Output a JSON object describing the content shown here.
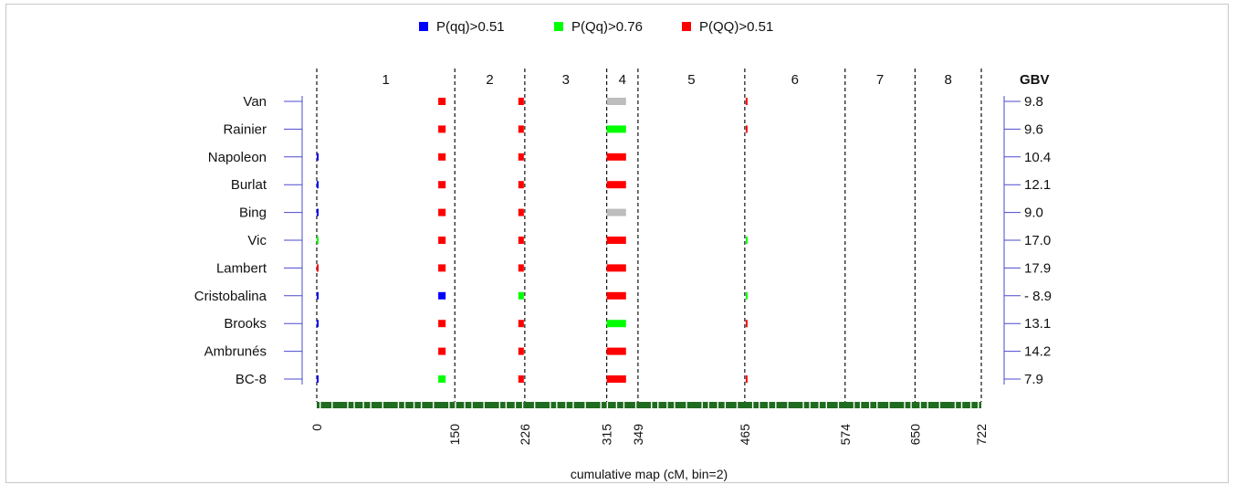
{
  "chart_data": {
    "type": "scatter",
    "legend": {
      "placement": "top-center",
      "entries": [
        {
          "label": "P(qq)>0.51",
          "color": "#0000ff"
        },
        {
          "label": "P(Qq)>0.76",
          "color": "#00ff00"
        },
        {
          "label": "P(QQ)>0.51",
          "color": "#ff0000"
        }
      ]
    },
    "other_color": "#bdbdbd",
    "axis_color": "#4a4acf",
    "marker_color": "#1f6b1f",
    "xlabel": "cumulative map (cM, bin=2)",
    "xlim": [
      0,
      722
    ],
    "boundaries": [
      0,
      150,
      226,
      315,
      349,
      465,
      574,
      650,
      722
    ],
    "boundary_labels": [
      "0",
      "150",
      "226",
      "315",
      "349",
      "465",
      "574",
      "650",
      "722"
    ],
    "chromosomes": [
      "1",
      "2",
      "3",
      "4",
      "5",
      "6",
      "7",
      "8"
    ],
    "gbv_title": "GBV",
    "cultivars": [
      "Van",
      "Rainier",
      "Napoleon",
      "Burlat",
      "Bing",
      "Vic",
      "Lambert",
      "Cristobalina",
      "Brooks",
      "Ambrunés",
      "BC-8"
    ],
    "gbv": [
      "9.8",
      "9.6",
      "10.4",
      "12.1",
      "9.0",
      "17.0",
      "17.9",
      "- 8.9",
      "13.1",
      "14.2",
      "7.9"
    ],
    "segments": [
      {
        "row": 0,
        "start": 132,
        "end": 140,
        "class": "QQ"
      },
      {
        "row": 0,
        "start": 219,
        "end": 225,
        "class": "QQ"
      },
      {
        "row": 0,
        "start": 315,
        "end": 336,
        "class": "other"
      },
      {
        "row": 0,
        "start": 466,
        "end": 468,
        "class": "QQ"
      },
      {
        "row": 1,
        "start": 132,
        "end": 140,
        "class": "QQ"
      },
      {
        "row": 1,
        "start": 219,
        "end": 225,
        "class": "QQ"
      },
      {
        "row": 1,
        "start": 315,
        "end": 336,
        "class": "Qq"
      },
      {
        "row": 1,
        "start": 466,
        "end": 468,
        "class": "QQ"
      },
      {
        "row": 2,
        "start": 0,
        "end": 2,
        "class": "qq"
      },
      {
        "row": 2,
        "start": 132,
        "end": 140,
        "class": "QQ"
      },
      {
        "row": 2,
        "start": 219,
        "end": 225,
        "class": "QQ"
      },
      {
        "row": 2,
        "start": 315,
        "end": 336,
        "class": "QQ"
      },
      {
        "row": 3,
        "start": 0,
        "end": 2,
        "class": "qq"
      },
      {
        "row": 3,
        "start": 132,
        "end": 140,
        "class": "QQ"
      },
      {
        "row": 3,
        "start": 219,
        "end": 225,
        "class": "QQ"
      },
      {
        "row": 3,
        "start": 315,
        "end": 336,
        "class": "QQ"
      },
      {
        "row": 4,
        "start": 0,
        "end": 2,
        "class": "qq"
      },
      {
        "row": 4,
        "start": 132,
        "end": 140,
        "class": "QQ"
      },
      {
        "row": 4,
        "start": 219,
        "end": 225,
        "class": "QQ"
      },
      {
        "row": 4,
        "start": 315,
        "end": 336,
        "class": "other"
      },
      {
        "row": 5,
        "start": 0,
        "end": 2,
        "class": "Qq"
      },
      {
        "row": 5,
        "start": 132,
        "end": 140,
        "class": "QQ"
      },
      {
        "row": 5,
        "start": 219,
        "end": 225,
        "class": "QQ"
      },
      {
        "row": 5,
        "start": 315,
        "end": 336,
        "class": "QQ"
      },
      {
        "row": 5,
        "start": 466,
        "end": 468,
        "class": "Qq"
      },
      {
        "row": 6,
        "start": 0,
        "end": 2,
        "class": "QQ"
      },
      {
        "row": 6,
        "start": 132,
        "end": 140,
        "class": "QQ"
      },
      {
        "row": 6,
        "start": 219,
        "end": 225,
        "class": "QQ"
      },
      {
        "row": 6,
        "start": 315,
        "end": 336,
        "class": "QQ"
      },
      {
        "row": 7,
        "start": 0,
        "end": 2,
        "class": "qq"
      },
      {
        "row": 7,
        "start": 132,
        "end": 140,
        "class": "qq"
      },
      {
        "row": 7,
        "start": 219,
        "end": 225,
        "class": "Qq"
      },
      {
        "row": 7,
        "start": 315,
        "end": 336,
        "class": "QQ"
      },
      {
        "row": 7,
        "start": 466,
        "end": 468,
        "class": "Qq"
      },
      {
        "row": 8,
        "start": 0,
        "end": 2,
        "class": "qq"
      },
      {
        "row": 8,
        "start": 132,
        "end": 140,
        "class": "QQ"
      },
      {
        "row": 8,
        "start": 219,
        "end": 225,
        "class": "QQ"
      },
      {
        "row": 8,
        "start": 315,
        "end": 336,
        "class": "Qq"
      },
      {
        "row": 8,
        "start": 466,
        "end": 468,
        "class": "QQ"
      },
      {
        "row": 9,
        "start": 132,
        "end": 140,
        "class": "QQ"
      },
      {
        "row": 9,
        "start": 219,
        "end": 225,
        "class": "QQ"
      },
      {
        "row": 9,
        "start": 315,
        "end": 336,
        "class": "QQ"
      },
      {
        "row": 10,
        "start": 0,
        "end": 2,
        "class": "qq"
      },
      {
        "row": 10,
        "start": 132,
        "end": 140,
        "class": "Qq"
      },
      {
        "row": 10,
        "start": 219,
        "end": 225,
        "class": "QQ"
      },
      {
        "row": 10,
        "start": 315,
        "end": 336,
        "class": "QQ"
      },
      {
        "row": 10,
        "start": 466,
        "end": 468,
        "class": "QQ"
      }
    ]
  }
}
